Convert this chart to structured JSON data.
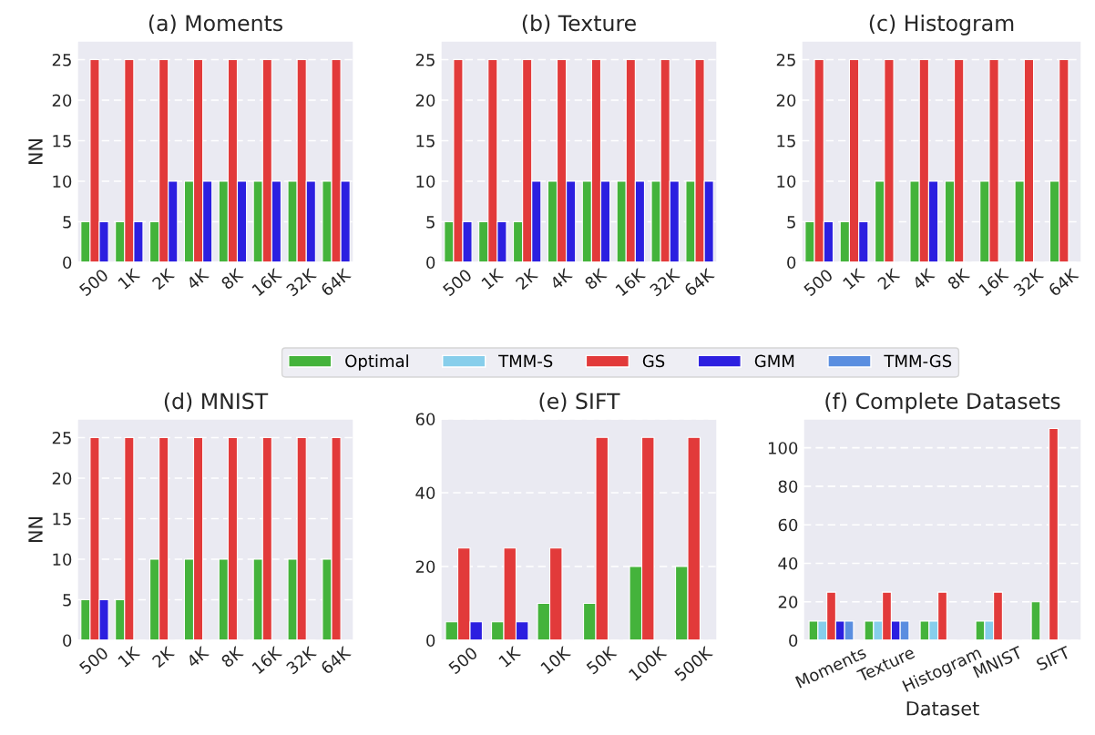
{
  "chart_data": [
    {
      "type": "bar",
      "title": "(a) Moments",
      "ylabel": "NN",
      "categories": [
        "500",
        "1K",
        "2K",
        "4K",
        "8K",
        "16K",
        "32K",
        "64K"
      ],
      "ylim": [
        0,
        27.3
      ],
      "yticks": [
        0,
        5,
        10,
        15,
        20,
        25
      ],
      "grid": "y",
      "series": [
        {
          "color": "#44b33b",
          "values": [
            5,
            5,
            5,
            10,
            10,
            10,
            10,
            10
          ]
        },
        {
          "color": "#e23a3a",
          "values": [
            25,
            25,
            25,
            25,
            25,
            25,
            25,
            25
          ]
        },
        {
          "color": "#2c1fe0",
          "values": [
            5,
            5,
            10,
            10,
            10,
            10,
            10,
            10
          ]
        }
      ]
    },
    {
      "type": "bar",
      "title": "(b) Texture",
      "categories": [
        "500",
        "1K",
        "2K",
        "4K",
        "8K",
        "16K",
        "32K",
        "64K"
      ],
      "ylim": [
        0,
        27.3
      ],
      "yticks": [
        0,
        5,
        10,
        15,
        20,
        25
      ],
      "grid": "y",
      "series": [
        {
          "color": "#44b33b",
          "values": [
            5,
            5,
            5,
            10,
            10,
            10,
            10,
            10
          ]
        },
        {
          "color": "#e23a3a",
          "values": [
            25,
            25,
            25,
            25,
            25,
            25,
            25,
            25
          ]
        },
        {
          "color": "#2c1fe0",
          "values": [
            5,
            5,
            10,
            10,
            10,
            10,
            10,
            10
          ]
        }
      ]
    },
    {
      "type": "bar",
      "title": "(c) Histogram",
      "categories": [
        "500",
        "1K",
        "2K",
        "4K",
        "8K",
        "16K",
        "32K",
        "64K"
      ],
      "ylim": [
        0,
        27.3
      ],
      "yticks": [
        0,
        5,
        10,
        15,
        20,
        25
      ],
      "grid": "y",
      "series": [
        {
          "color": "#44b33b",
          "values": [
            5,
            5,
            10,
            10,
            10,
            10,
            10,
            10
          ]
        },
        {
          "color": "#e23a3a",
          "values": [
            25,
            25,
            25,
            25,
            25,
            25,
            25,
            25
          ]
        },
        {
          "color": "#2c1fe0",
          "values": [
            5,
            5,
            null,
            10,
            null,
            null,
            null,
            null
          ]
        }
      ]
    },
    {
      "type": "bar",
      "title": "(d) MNIST",
      "ylabel": "NN",
      "categories": [
        "500",
        "1K",
        "2K",
        "4K",
        "8K",
        "16K",
        "32K",
        "64K"
      ],
      "ylim": [
        0,
        27.3
      ],
      "yticks": [
        0,
        5,
        10,
        15,
        20,
        25
      ],
      "grid": "y",
      "series": [
        {
          "color": "#44b33b",
          "values": [
            5,
            5,
            10,
            10,
            10,
            10,
            10,
            10
          ]
        },
        {
          "color": "#e23a3a",
          "values": [
            25,
            25,
            25,
            25,
            25,
            25,
            25,
            25
          ]
        },
        {
          "color": "#2c1fe0",
          "values": [
            5,
            null,
            null,
            null,
            null,
            null,
            null,
            null
          ]
        }
      ]
    },
    {
      "type": "bar",
      "title": "(e) SIFT",
      "categories": [
        "500",
        "1K",
        "10K",
        "50K",
        "100K",
        "500K"
      ],
      "ylim": [
        0,
        60
      ],
      "yticks": [
        0,
        20,
        40,
        60
      ],
      "grid": "y",
      "series": [
        {
          "color": "#44b33b",
          "values": [
            5,
            5,
            10,
            10,
            20,
            20
          ]
        },
        {
          "color": "#e23a3a",
          "values": [
            25,
            25,
            25,
            55,
            55,
            55
          ]
        },
        {
          "color": "#2c1fe0",
          "values": [
            5,
            5,
            null,
            null,
            null,
            null
          ]
        }
      ]
    },
    {
      "type": "bar",
      "title": "(f) Complete Datasets",
      "xlabel": "Dataset",
      "categories": [
        "Moments",
        "Texture",
        "Histogram",
        "MNIST",
        "SIFT"
      ],
      "ylim": [
        0,
        115
      ],
      "yticks": [
        0,
        20,
        40,
        60,
        80,
        100
      ],
      "grid": "y",
      "legend": "top",
      "series": [
        {
          "name": "Optimal",
          "color": "#44b33b",
          "values": [
            10,
            10,
            10,
            10,
            20
          ]
        },
        {
          "name": "TMM-S",
          "color": "#87ceeb",
          "values": [
            10,
            10,
            10,
            10,
            null
          ]
        },
        {
          "name": "GS",
          "color": "#e23a3a",
          "values": [
            25,
            25,
            25,
            25,
            110
          ]
        },
        {
          "name": "GMM",
          "color": "#2c1fe0",
          "values": [
            10,
            10,
            null,
            null,
            null
          ]
        },
        {
          "name": "TMM-GS",
          "color": "#5a8ee0",
          "values": [
            10,
            10,
            null,
            null,
            null
          ]
        }
      ]
    }
  ]
}
